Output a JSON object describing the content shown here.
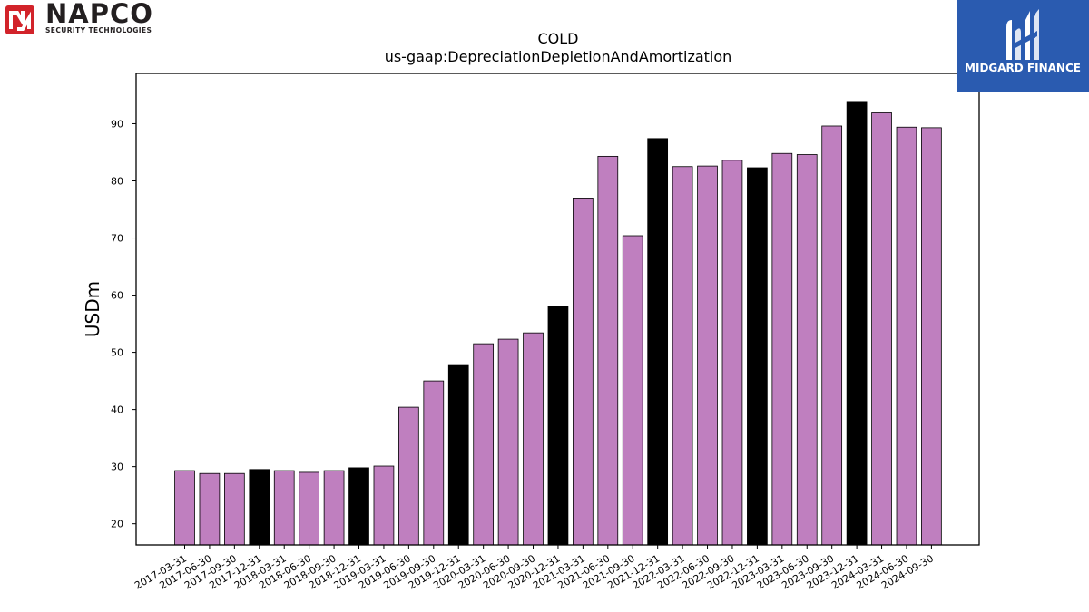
{
  "logos": {
    "napco_name": "NAPCO",
    "napco_tagline": "SECURITY TECHNOLOGIES",
    "midgard_name": "MIDGARD FINANCE"
  },
  "colors": {
    "bar": "#bf7fbf",
    "bar_highlight": "#000000",
    "midgard_bg": "#2a5bb0",
    "napco_red": "#d2232a"
  },
  "chart_data": {
    "type": "bar",
    "title": "COLD",
    "subtitle": "us-gaap:DepreciationDepletionAndAmortization",
    "xlabel": "",
    "ylabel": "USDm",
    "ylim": [
      16.3,
      98.8
    ],
    "yticks": [
      20,
      30,
      40,
      50,
      60,
      70,
      80,
      90
    ],
    "grid": false,
    "categories": [
      "2017-03-31",
      "2017-06-30",
      "2017-09-30",
      "2017-12-31",
      "2018-03-31",
      "2018-06-30",
      "2018-09-30",
      "2018-12-31",
      "2019-03-31",
      "2019-06-30",
      "2019-09-30",
      "2019-12-31",
      "2020-03-31",
      "2020-06-30",
      "2020-09-30",
      "2020-12-31",
      "2021-03-31",
      "2021-06-30",
      "2021-09-30",
      "2021-12-31",
      "2022-03-31",
      "2022-06-30",
      "2022-09-30",
      "2022-12-31",
      "2023-03-31",
      "2023-06-30",
      "2023-09-30",
      "2023-12-31",
      "2024-03-31",
      "2024-06-30",
      "2024-09-30"
    ],
    "values": [
      29.3,
      28.8,
      28.8,
      29.5,
      29.3,
      29.0,
      29.3,
      29.8,
      30.1,
      40.4,
      45.0,
      47.7,
      51.5,
      52.3,
      53.4,
      58.1,
      77.0,
      84.3,
      70.4,
      87.4,
      82.5,
      82.6,
      83.6,
      82.3,
      84.8,
      84.6,
      89.6,
      93.9,
      91.9,
      89.4,
      89.3
    ],
    "highlighted": [
      "2017-12-31",
      "2018-12-31",
      "2019-12-31",
      "2020-12-31",
      "2021-12-31",
      "2022-12-31",
      "2023-12-31"
    ]
  }
}
